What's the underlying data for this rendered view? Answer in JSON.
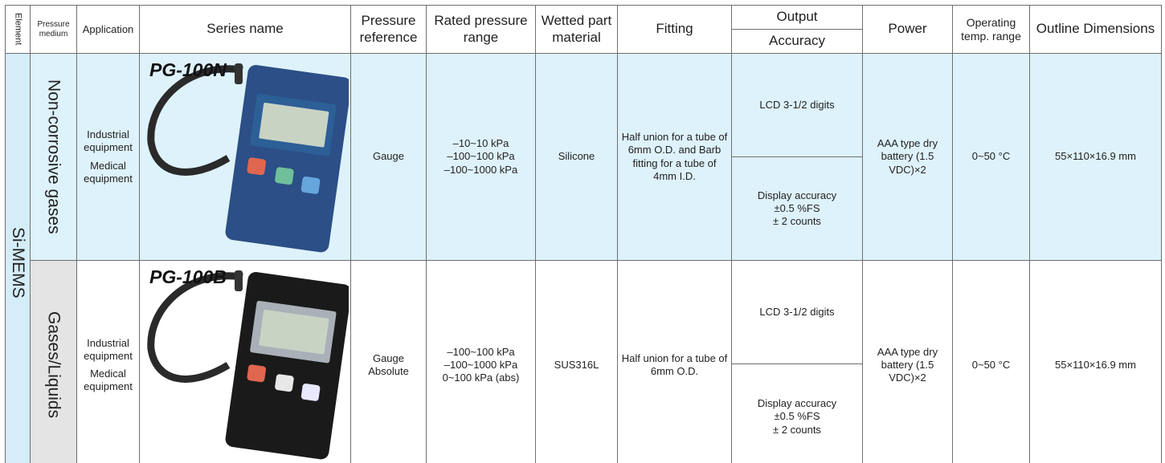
{
  "header": {
    "element": "Element",
    "pressure_medium": "Pressure medium",
    "application": "Application",
    "series_name": "Series name",
    "pressure_reference": "Pressure reference",
    "rated_pressure_range": "Rated pressure range",
    "wetted_part_material": "Wetted part material",
    "fitting": "Fitting",
    "output": "Output",
    "accuracy": "Accuracy",
    "power": "Power",
    "operating_temp_range": "Operating temp. range",
    "outline_dimensions": "Outline Dimensions"
  },
  "element": "Si-MEMS",
  "rows": [
    {
      "pressure_medium": "Non-corrosive gases",
      "application": [
        "Industrial equipment",
        "Medical equipment"
      ],
      "series_name": "PG-100N",
      "pressure_reference": [
        "Gauge"
      ],
      "rated_pressure_range": [
        "–10~10 kPa",
        "–100~100 kPa",
        "–100~1000 kPa"
      ],
      "wetted_part_material": "Silicone",
      "fitting": "Half union for a tube of 6mm O.D. and Barb fitting for a tube of 4mm I.D.",
      "output": "LCD 3-1/2 digits",
      "accuracy": [
        "Display accuracy",
        "±0.5 %FS",
        "± 2 counts"
      ],
      "power": "AAA type dry battery (1.5 VDC)×2",
      "operating_temp_range": "0~50 °C",
      "outline_dimensions": "55×110×16.9 mm"
    },
    {
      "pressure_medium": "Gases/Liquids",
      "application": [
        "Industrial equipment",
        "Medical equipment"
      ],
      "series_name": "PG-100B",
      "pressure_reference": [
        "Gauge",
        "Absolute"
      ],
      "rated_pressure_range": [
        "–100~100 kPa",
        "–100~1000 kPa",
        "0~100 kPa (abs)"
      ],
      "wetted_part_material": "SUS316L",
      "fitting": "Half union for a tube of 6mm O.D.",
      "output": "LCD 3-1/2 digits",
      "accuracy": [
        "Display accuracy",
        "±0.5 %FS",
        "± 2 counts"
      ],
      "power": "AAA type dry battery (1.5 VDC)×2",
      "operating_temp_range": "0~50 °C",
      "outline_dimensions": "55×110×16.9 mm"
    }
  ]
}
